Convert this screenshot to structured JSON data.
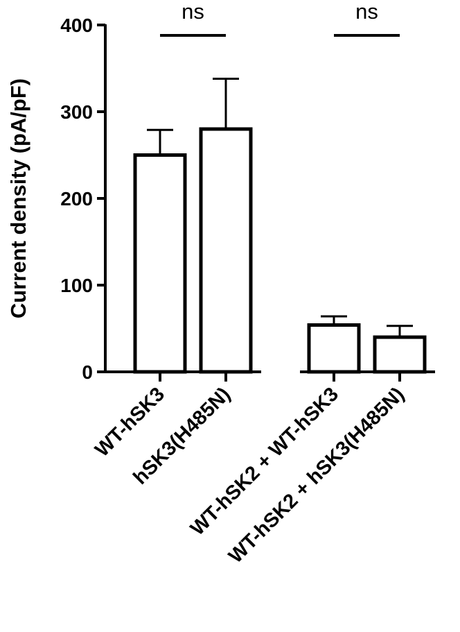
{
  "chart_data": {
    "type": "bar",
    "ylabel": "Current density (pA/pF)",
    "ylim": [
      0,
      400
    ],
    "yticks": [
      0,
      100,
      200,
      300,
      400
    ],
    "grid": false,
    "categories": [
      "WT-hSK3",
      "hSK3(H485N)",
      "WT-hSK2 + WT-hSK3",
      "WT-hSK2 + hSK3(H485N)"
    ],
    "values": [
      250,
      280,
      54,
      40
    ],
    "error_upper": [
      279,
      338,
      64,
      53
    ],
    "bar_fill": "#ffffff",
    "bar_stroke": "#000000",
    "significance": [
      {
        "groups": [
          0,
          1
        ],
        "label": "ns"
      },
      {
        "groups": [
          2,
          3
        ],
        "label": "ns"
      }
    ]
  }
}
